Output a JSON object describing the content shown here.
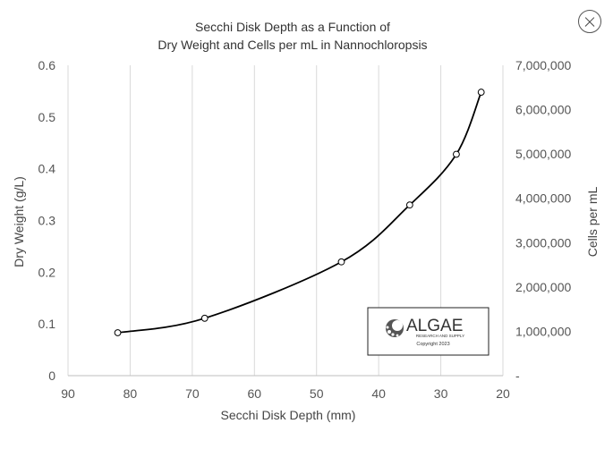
{
  "ui": {
    "close_icon": "close-icon"
  },
  "chart_data": {
    "type": "line",
    "title_line1": "Secchi Disk Depth as a Function of",
    "title_line2": "Dry Weight and Cells per mL in Nannochloropsis",
    "xlabel": "Secchi Disk Depth (mm)",
    "ylabel": "Dry Weight (g/L)",
    "y2label": "Cells per mL",
    "xlim": [
      90,
      20
    ],
    "x_reversed": true,
    "ylim": [
      0,
      0.6
    ],
    "y2lim": [
      0,
      7000000
    ],
    "x_ticks": [
      "90",
      "80",
      "70",
      "60",
      "50",
      "40",
      "30",
      "20"
    ],
    "y_ticks": [
      "0",
      "0.1",
      "0.2",
      "0.3",
      "0.4",
      "0.5",
      "0.6"
    ],
    "y2_ticks": [
      "-",
      "1,000,000",
      "2,000,000",
      "3,000,000",
      "4,000,000",
      "5,000,000",
      "6,000,000",
      "7,000,000"
    ],
    "grid": "vertical",
    "series": [
      {
        "x": [
          82,
          68,
          46,
          35,
          27.5,
          23.5
        ],
        "y": [
          0.083,
          0.111,
          0.22,
          0.33,
          0.428,
          0.548
        ],
        "marker": "circle",
        "color": "#000000"
      }
    ],
    "logo": {
      "name": "ALGAE",
      "sub": "RESEARCH AND SUPPLY",
      "copyright": "Copyright 2023"
    }
  }
}
